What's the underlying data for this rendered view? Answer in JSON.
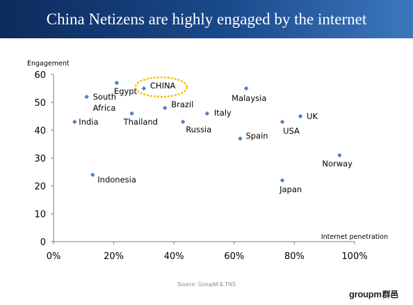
{
  "header": {
    "title": "China Netizens are highly engaged by the internet"
  },
  "footer": {
    "source": "Source: GroupM & TNS",
    "logo_text": "groupm",
    "logo_glyph": "群邑"
  },
  "colors": {
    "title_bar": "#1a4a8c",
    "marker": "#4f81bd",
    "highlight_ellipse": "#f5c000"
  },
  "chart_data": {
    "type": "scatter",
    "title": "",
    "xlabel": "Internet penetration",
    "ylabel": "Engagement",
    "x_format": "percent",
    "xlim": [
      0,
      1
    ],
    "ylim": [
      0,
      60
    ],
    "x_ticks": [
      0,
      0.2,
      0.4,
      0.6,
      0.8,
      1.0
    ],
    "y_ticks": [
      0,
      10,
      20,
      30,
      40,
      50,
      60
    ],
    "grid": false,
    "legend": "none",
    "highlight": "CHINA",
    "points": [
      {
        "label": "India",
        "x": 0.07,
        "y": 43
      },
      {
        "label": "South Africa",
        "x": 0.11,
        "y": 52
      },
      {
        "label": "Indonesia",
        "x": 0.13,
        "y": 24
      },
      {
        "label": "Egypt",
        "x": 0.21,
        "y": 57
      },
      {
        "label": "Thailand",
        "x": 0.26,
        "y": 46
      },
      {
        "label": "CHINA",
        "x": 0.3,
        "y": 55
      },
      {
        "label": "Brazil",
        "x": 0.37,
        "y": 48
      },
      {
        "label": "Russia",
        "x": 0.43,
        "y": 43
      },
      {
        "label": "Italy",
        "x": 0.51,
        "y": 46
      },
      {
        "label": "Spain",
        "x": 0.62,
        "y": 37
      },
      {
        "label": "Malaysia",
        "x": 0.64,
        "y": 55
      },
      {
        "label": "USA",
        "x": 0.76,
        "y": 43
      },
      {
        "label": "Japan",
        "x": 0.76,
        "y": 22
      },
      {
        "label": "UK",
        "x": 0.82,
        "y": 45
      },
      {
        "label": "Norway",
        "x": 0.95,
        "y": 31
      }
    ]
  }
}
